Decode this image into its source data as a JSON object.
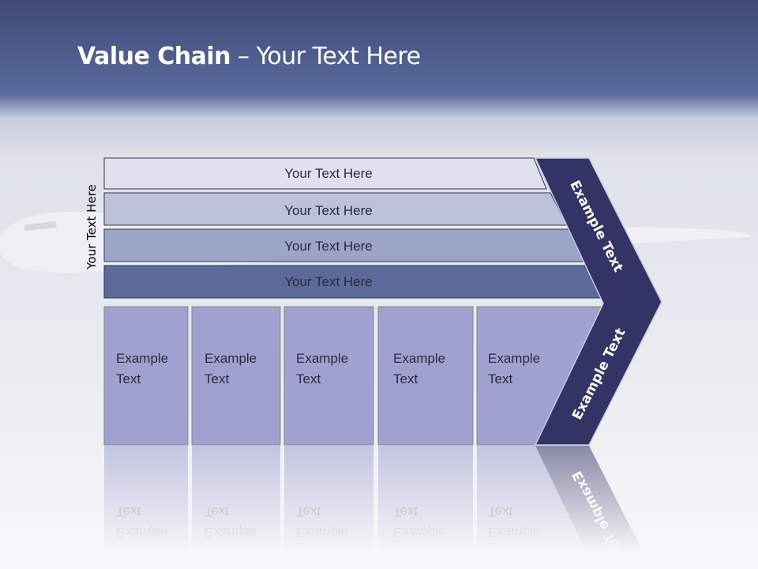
{
  "title": {
    "bold": "Value Chain",
    "rest": " – Your Text Here"
  },
  "side_label": "Your Text Here",
  "bars": [
    {
      "label": "Your Text Here",
      "color": "#dfe2ee"
    },
    {
      "label": "Your Text Here",
      "color": "#bcc2d8"
    },
    {
      "label": "Your Text Here",
      "color": "#9ca5c6"
    },
    {
      "label": "Your Text Here",
      "color": "#5c6a9a"
    }
  ],
  "columns": [
    {
      "line1": "Example",
      "line2": "Text"
    },
    {
      "line1": "Example",
      "line2": "Text"
    },
    {
      "line1": "Example",
      "line2": "Text"
    },
    {
      "line1": "Example",
      "line2": "Text"
    },
    {
      "line1": "Example",
      "line2": "Text"
    }
  ],
  "column_color": "#a0a1d0",
  "chevron": {
    "upper": "Example Text",
    "lower": "Example Text",
    "color": "#333366"
  }
}
